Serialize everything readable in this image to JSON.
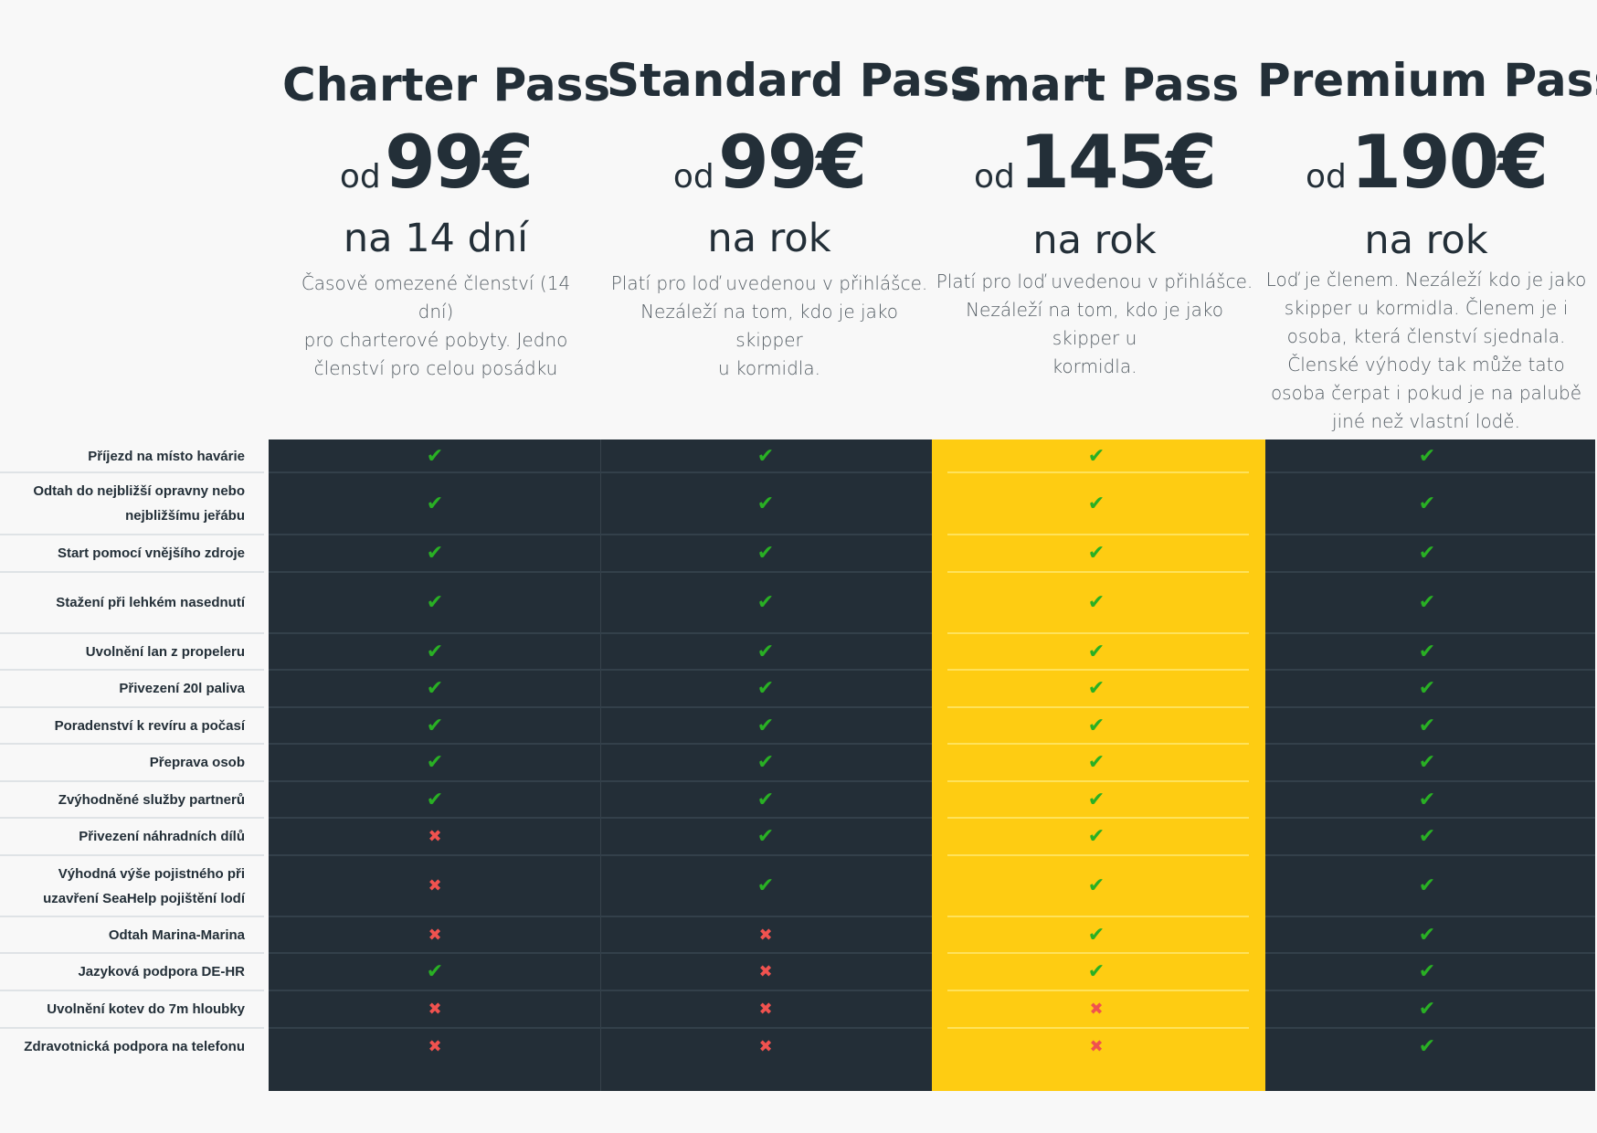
{
  "colors": {
    "background": "#f8f8f8",
    "table_dark": "#232e37",
    "highlight": "#fecc12",
    "check": "#29b024",
    "cross": "#f0524f",
    "heading_text": "#232f38"
  },
  "plans": [
    {
      "name": "Charter Pass",
      "price_prefix": "od",
      "price": "99€",
      "period": "na 14 dní",
      "description_lines": [
        "Časově omezené členství (14 dní)",
        "pro charterové pobyty. Jedno",
        "členství pro celou posádku"
      ],
      "highlighted": false
    },
    {
      "name": "Standard Pass",
      "price_prefix": "od",
      "price": "99€",
      "period": "na rok",
      "description_lines": [
        "Platí pro loď uvedenou v přihlášce.",
        "Nezáleží na tom, kdo je jako skipper",
        "u kormidla."
      ],
      "highlighted": false
    },
    {
      "name": "Smart Pass",
      "price_prefix": "od",
      "price": "145€",
      "period": "na rok",
      "description_lines": [
        "Platí pro loď uvedenou v přihlášce.",
        "Nezáleží na tom, kdo je jako skipper u",
        "kormidla."
      ],
      "highlighted": true
    },
    {
      "name": "Premium Pass",
      "price_prefix": "od",
      "price": "190€",
      "period": "na rok",
      "description_lines": [
        "Loď je členem. Nezáleží kdo je jako",
        "skipper u kormidla. Členem je i",
        "osoba, která členství sjednala.",
        "Členské výhody tak může tato",
        "osoba čerpat i pokud je na palubě",
        "jiné než vlastní lodě."
      ],
      "highlighted": false
    }
  ],
  "icons": {
    "included": "check-icon",
    "excluded": "cross-icon"
  },
  "features": [
    {
      "label_lines": [
        "Příjezd na místo havárie"
      ],
      "included": [
        true,
        true,
        true,
        true
      ]
    },
    {
      "label_lines": [
        "Odtah do nejbližší opravny nebo",
        "nejbližšímu jeřábu"
      ],
      "included": [
        true,
        true,
        true,
        true
      ]
    },
    {
      "label_lines": [
        "Start pomocí vnějšího zdroje"
      ],
      "included": [
        true,
        true,
        true,
        true
      ]
    },
    {
      "label_lines": [
        "Stažení při lehkém nasednutí"
      ],
      "included": [
        true,
        true,
        true,
        true
      ]
    },
    {
      "label_lines": [
        "Uvolnění lan z propeleru"
      ],
      "included": [
        true,
        true,
        true,
        true
      ]
    },
    {
      "label_lines": [
        "Přivezení 20l paliva"
      ],
      "included": [
        true,
        true,
        true,
        true
      ]
    },
    {
      "label_lines": [
        "Poradenství k revíru a počasí"
      ],
      "included": [
        true,
        true,
        true,
        true
      ]
    },
    {
      "label_lines": [
        "Přeprava osob"
      ],
      "included": [
        true,
        true,
        true,
        true
      ]
    },
    {
      "label_lines": [
        "Zvýhodněné služby partnerů"
      ],
      "included": [
        true,
        true,
        true,
        true
      ]
    },
    {
      "label_lines": [
        "Přivezení náhradních dílů"
      ],
      "included": [
        false,
        true,
        true,
        true
      ]
    },
    {
      "label_lines": [
        "Výhodná výše pojistného při",
        "uzavření SeaHelp pojištění lodí"
      ],
      "included": [
        false,
        true,
        true,
        true
      ]
    },
    {
      "label_lines": [
        "Odtah Marina-Marina"
      ],
      "included": [
        false,
        false,
        true,
        true
      ]
    },
    {
      "label_lines": [
        "Jazyková podpora DE-HR"
      ],
      "included": [
        true,
        false,
        true,
        true
      ]
    },
    {
      "label_lines": [
        "Uvolnění kotev do 7m hloubky"
      ],
      "included": [
        false,
        false,
        false,
        true
      ]
    },
    {
      "label_lines": [
        "Zdravotnická podpora na telefonu"
      ],
      "included": [
        false,
        false,
        false,
        true
      ]
    }
  ]
}
